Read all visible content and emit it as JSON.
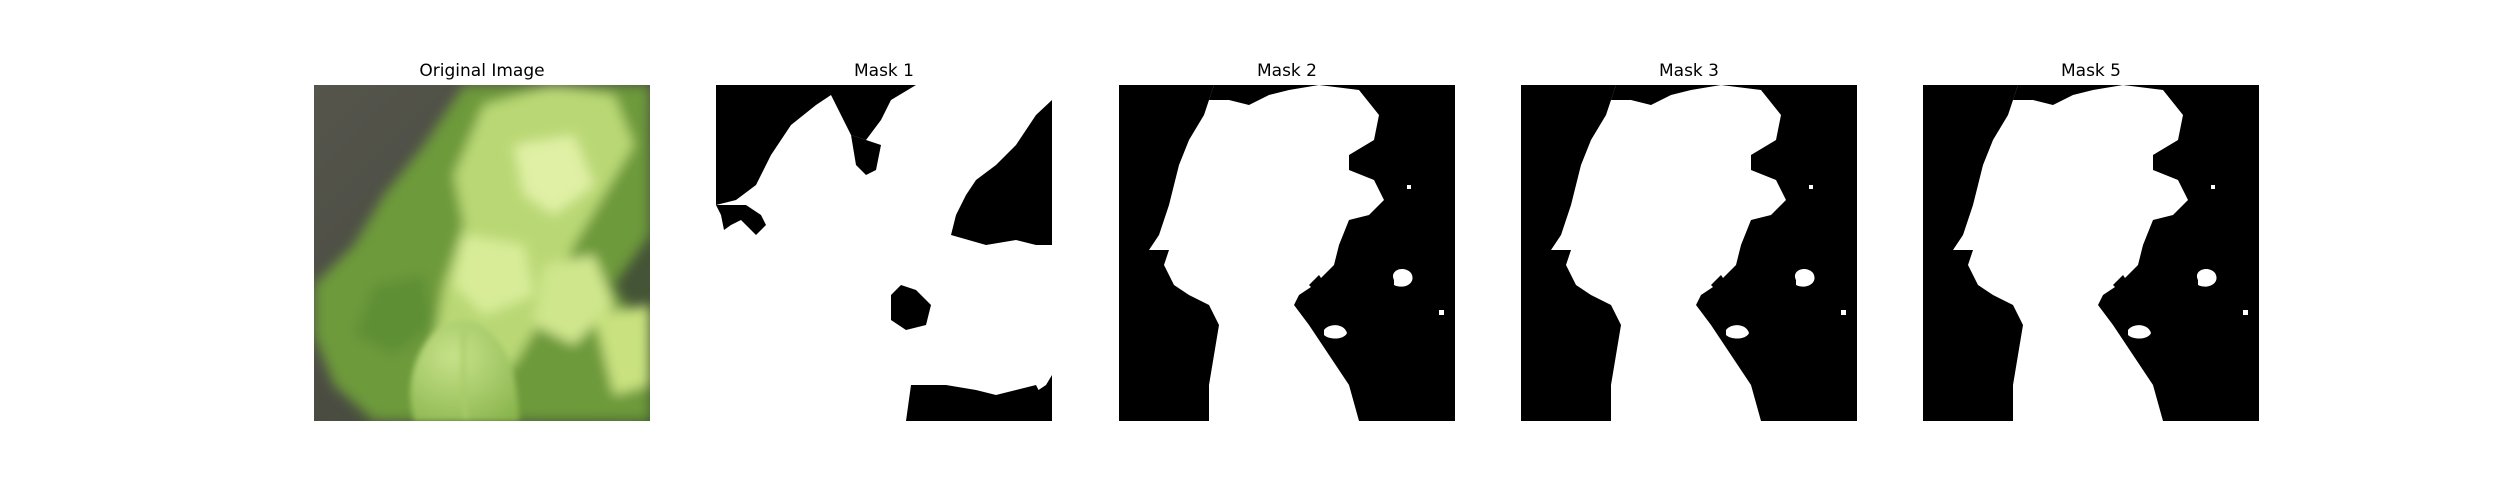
{
  "panels": [
    {
      "title": "Original Image",
      "kind": "photo"
    },
    {
      "title": "Mask 1",
      "kind": "mask"
    },
    {
      "title": "Mask 2",
      "kind": "mask"
    },
    {
      "title": "Mask 3",
      "kind": "mask"
    },
    {
      "title": "Mask 5",
      "kind": "mask"
    }
  ],
  "colors": {
    "mask_foreground": "#ffffff",
    "mask_background": "#000000",
    "leaf_light": "#dff0a0",
    "leaf_mid": "#9cc557",
    "leaf_dark": "#4f7d2a",
    "soil": "#4a4a42"
  }
}
